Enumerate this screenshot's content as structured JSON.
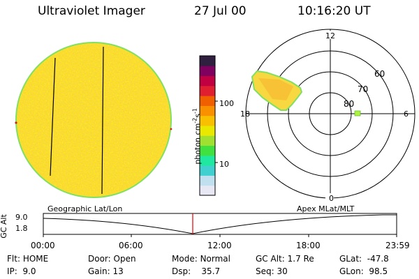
{
  "header": {
    "title": "Ultraviolet Imager",
    "date": "27 Jul 00",
    "time": "10:16:20 UT"
  },
  "colorbar": {
    "label_main": "photon cm",
    "label_sup1": "-2",
    "label_mid": "s",
    "label_sup2": "-1",
    "tick_100": "100",
    "tick_10": "10",
    "colors": [
      "#e8e8f4",
      "#c0e0f0",
      "#40d0d0",
      "#20e8a0",
      "#40e040",
      "#a0e030",
      "#e8e800",
      "#f8c000",
      "#f89000",
      "#f06000",
      "#e02030",
      "#c00040",
      "#800060",
      "#302040"
    ]
  },
  "polar": {
    "mlt_12": "12",
    "mlt_18": "18",
    "mlt_6": "6",
    "mlt_0": "0",
    "lat_60": "60",
    "lat_70": "70",
    "lat_80": "80"
  },
  "timeline": {
    "left_label": "Geographic Lat/Lon",
    "right_label": "Apex MLat/MLT",
    "axis_title": "GC Alt",
    "y_top": "9.0",
    "y_bottom": "1.8",
    "ticks": [
      "00:00",
      "06:00",
      "12:00",
      "18:00",
      "23:59"
    ],
    "marker_color": "#e00000"
  },
  "status": {
    "flt_label": "Flt:",
    "flt_value": "HOME",
    "ip_label": "IP:",
    "ip_value": "9.0",
    "door_label": "Door:",
    "door_value": "Open",
    "gain_label": "Gain:",
    "gain_value": "13",
    "mode_label": "Mode:",
    "mode_value": "Normal",
    "dsp_label": "Dsp:",
    "dsp_value": "35.7",
    "gcalt_label": "GC Alt:",
    "gcalt_value": "1.7 Re",
    "seq_label": "Seq:",
    "seq_value": "30",
    "glat_label": "GLat:",
    "glat_value": "-47.8",
    "glon_label": "GLon:",
    "glon_value": "98.5"
  }
}
